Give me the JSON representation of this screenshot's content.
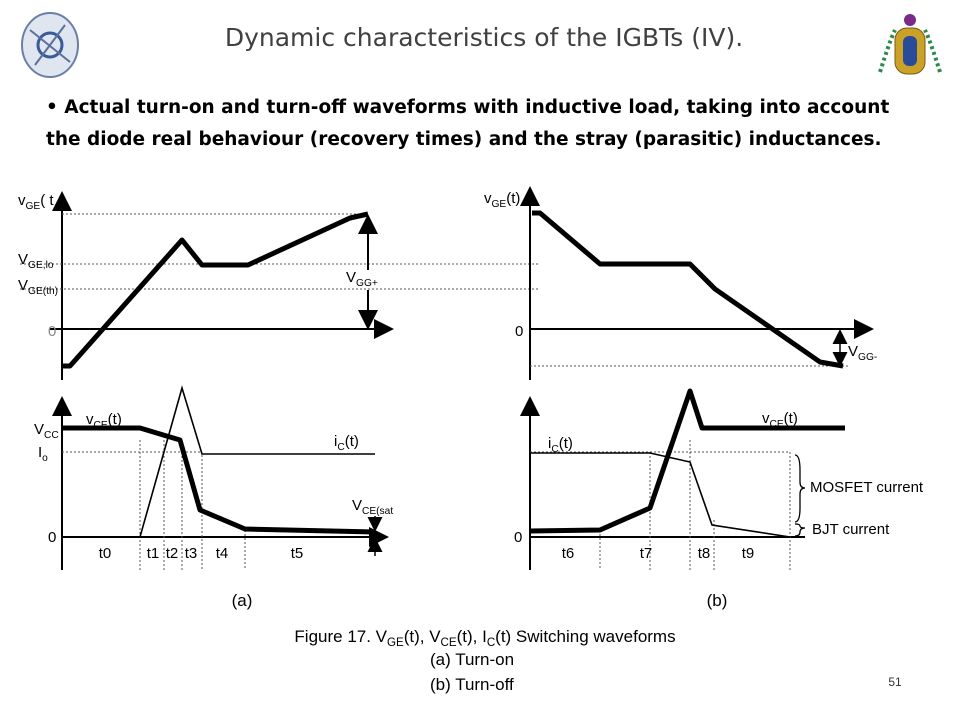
{
  "header": {
    "title": "Dynamic characteristics of the IGBTs (IV)."
  },
  "bullet": {
    "line1": "Actual turn-on and turn-off waveforms with inductive load, taking into account",
    "line2": "the diode real behaviour (recovery times) and the stray (parasitic) inductances."
  },
  "panel_a": {
    "vge_axis": [
      "v",
      "GE",
      "( t"
    ],
    "vge_lo": [
      "V",
      "GE,lo"
    ],
    "vge_th": [
      "V",
      "GE(th)"
    ],
    "zero_top": "0",
    "vgg_plus": [
      "V",
      "GG+"
    ],
    "vcc": [
      "V",
      "CC"
    ],
    "io": [
      "I",
      "o"
    ],
    "zero_bottom": "0",
    "vce": [
      "v",
      "CE",
      "(t)"
    ],
    "ic": [
      "i",
      "C",
      "(t)"
    ],
    "vce_sat": [
      "V",
      "CE(sat"
    ],
    "times": [
      "t0",
      "t1",
      "t2",
      "t3",
      "t4",
      "t5"
    ],
    "label": "(a)"
  },
  "panel_b": {
    "vge_axis": [
      "v",
      "GE",
      "(t)"
    ],
    "zero_top": "0",
    "vgg_minus": [
      "V",
      "GG-"
    ],
    "vce": [
      "v",
      "CE",
      "(t)"
    ],
    "ic": [
      "i",
      "C",
      "(t)"
    ],
    "zero_bottom": "0",
    "mosfet": "MOSFET current",
    "bjt": "BJT current",
    "times": [
      "t6",
      "t7",
      "t8",
      "t9"
    ],
    "label": "(b)"
  },
  "caption": {
    "line1": [
      "Figure 17. V",
      "GE",
      "(t), V",
      "CE",
      "(t), I",
      "C",
      "(t) Switching waveforms"
    ],
    "line2": "(a) Turn-on",
    "line3": "(b) Turn-off"
  },
  "footer": {
    "page": "51"
  }
}
